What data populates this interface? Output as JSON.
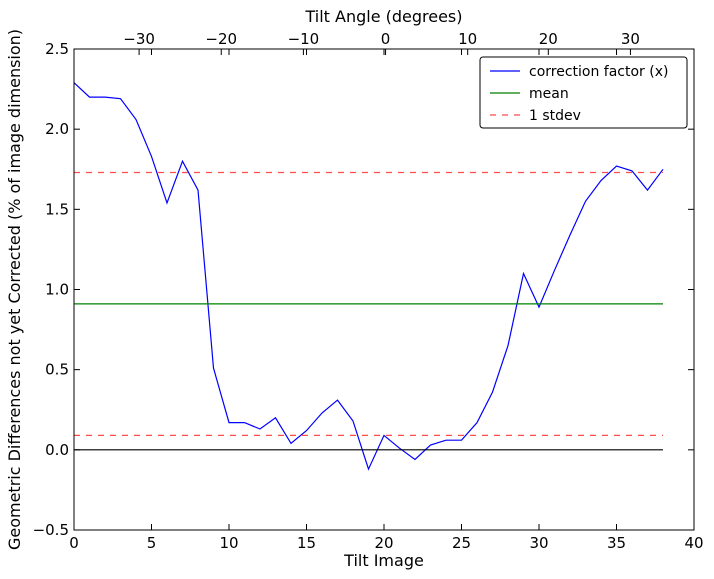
{
  "chart_data": {
    "type": "line",
    "xlabel": "Tilt Image",
    "ylabel": "Geometric Differences not yet Corrected (% of image dimension)",
    "top_xlabel": "Tilt Angle (degrees)",
    "xlim": [
      0,
      40
    ],
    "ylim": [
      -0.5,
      2.5
    ],
    "x_ticks": [
      0,
      5,
      10,
      15,
      20,
      25,
      30,
      35,
      40
    ],
    "y_ticks": [
      -0.5,
      0.0,
      0.5,
      1.0,
      1.5,
      2.0,
      2.5
    ],
    "y_tick_labels": [
      "−0.5",
      "0.0",
      "0.5",
      "1.0",
      "1.5",
      "2.0",
      "2.5"
    ],
    "top_ticks": [
      {
        "label": "−30",
        "x": 4.2
      },
      {
        "label": "−20",
        "x": 9.5
      },
      {
        "label": "−10",
        "x": 14.8
      },
      {
        "label": "0",
        "x": 20.1
      },
      {
        "label": "10",
        "x": 25.4
      },
      {
        "label": "20",
        "x": 30.6
      },
      {
        "label": "30",
        "x": 35.9
      }
    ],
    "series": [
      {
        "name": "correction factor (x)",
        "color": "#0000ff",
        "style": "solid",
        "x": [
          0,
          1,
          2,
          3,
          4,
          5,
          6,
          7,
          8,
          9,
          10,
          11,
          12,
          13,
          14,
          15,
          16,
          17,
          18,
          19,
          20,
          21,
          22,
          23,
          24,
          25,
          26,
          27,
          28,
          29,
          30,
          31,
          32,
          33,
          34,
          35,
          36,
          37,
          38
        ],
        "y": [
          2.29,
          2.2,
          2.2,
          2.19,
          2.06,
          1.83,
          1.54,
          1.8,
          1.62,
          0.51,
          0.17,
          0.17,
          0.13,
          0.2,
          0.04,
          0.12,
          0.23,
          0.31,
          0.18,
          -0.12,
          0.09,
          0.01,
          -0.06,
          0.03,
          0.06,
          0.06,
          0.17,
          0.36,
          0.65,
          1.1,
          0.89,
          1.12,
          1.34,
          1.55,
          1.68,
          1.77,
          1.74,
          1.62,
          1.75
        ]
      },
      {
        "name": "mean",
        "color": "#008000",
        "style": "solid",
        "x": [
          0,
          38
        ],
        "y": [
          0.91,
          0.91
        ]
      },
      {
        "name": "1 stdev",
        "color": "#ff0000",
        "style": "dashed",
        "x": [
          0,
          38
        ],
        "y": [
          1.73,
          1.73
        ]
      },
      {
        "name": "",
        "color": "#ff0000",
        "style": "dashed",
        "x": [
          0,
          38
        ],
        "y": [
          0.09,
          0.09
        ]
      },
      {
        "name": "",
        "color": "#000000",
        "style": "solid",
        "x": [
          0,
          38
        ],
        "y": [
          0.0,
          0.0
        ]
      }
    ],
    "legend": {
      "position": "top-right",
      "entries": [
        {
          "label": "correction factor (x)",
          "color": "#0000ff",
          "style": "solid"
        },
        {
          "label": "mean",
          "color": "#008000",
          "style": "solid"
        },
        {
          "label": "1 stdev",
          "color": "#ff0000",
          "style": "dashed"
        }
      ]
    },
    "grid": false
  }
}
